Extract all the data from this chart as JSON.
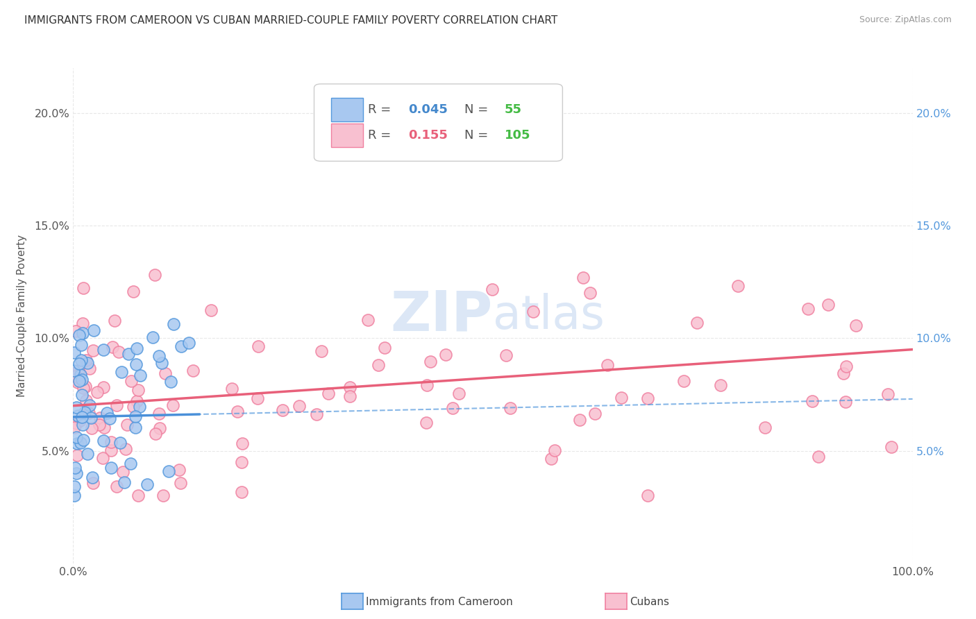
{
  "title": "IMMIGRANTS FROM CAMEROON VS CUBAN MARRIED-COUPLE FAMILY POVERTY CORRELATION CHART",
  "source": "Source: ZipAtlas.com",
  "ylabel": "Married-Couple Family Poverty",
  "legend_blue_r": "0.045",
  "legend_blue_n": "55",
  "legend_pink_r": "0.155",
  "legend_pink_n": "105",
  "blue_fill_color": "#A8C8F0",
  "blue_edge_color": "#5599DD",
  "pink_fill_color": "#F8C0D0",
  "pink_edge_color": "#F080A0",
  "pink_line_color": "#E8607A",
  "blue_line_color": "#4A90D9",
  "background_color": "#FFFFFF",
  "grid_color": "#E8E8E8",
  "right_tick_color": "#5599DD",
  "yticks": [
    5,
    10,
    15,
    20
  ],
  "ymax": 22,
  "xmax": 100,
  "watermark_color": "#C5D8F0",
  "legend_text_blue_r_color": "#4488CC",
  "legend_text_blue_n_color": "#44BB44",
  "legend_text_pink_r_color": "#E8607A",
  "legend_text_pink_n_color": "#44BB44"
}
